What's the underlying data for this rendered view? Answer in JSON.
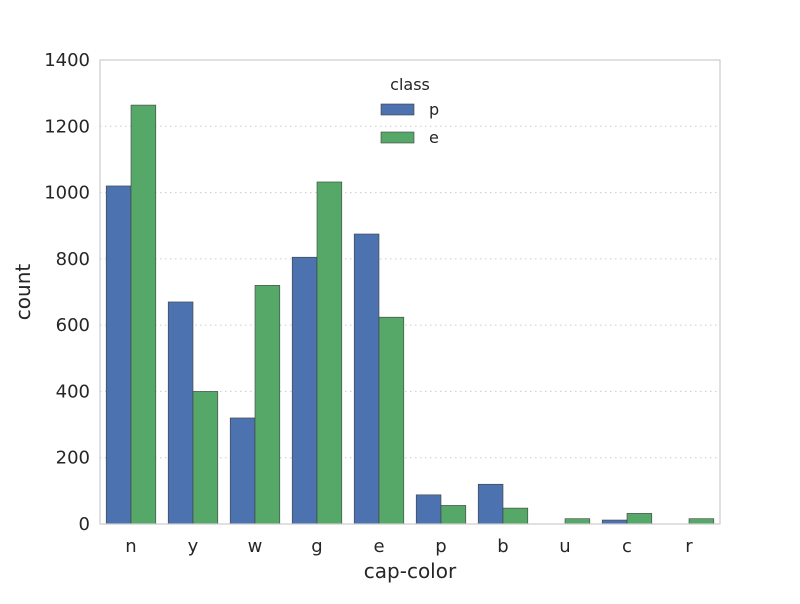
{
  "chart_data": {
    "type": "bar",
    "title": "",
    "xlabel": "cap-color",
    "ylabel": "count",
    "categories": [
      "n",
      "y",
      "w",
      "g",
      "e",
      "p",
      "b",
      "u",
      "c",
      "r"
    ],
    "series": [
      {
        "name": "p",
        "color": "#4c72b0",
        "values": [
          1020,
          670,
          320,
          805,
          875,
          88,
          120,
          0,
          12,
          0
        ]
      },
      {
        "name": "e",
        "color": "#55a868",
        "values": [
          1264,
          400,
          720,
          1032,
          624,
          56,
          48,
          16,
          32,
          16
        ]
      }
    ],
    "ylim": [
      0,
      1400
    ],
    "yticks": [
      "0",
      "200",
      "400",
      "600",
      "800",
      "1000",
      "1200",
      "1400"
    ],
    "grid": true,
    "legend": {
      "title": "class",
      "position": "top-center"
    }
  }
}
